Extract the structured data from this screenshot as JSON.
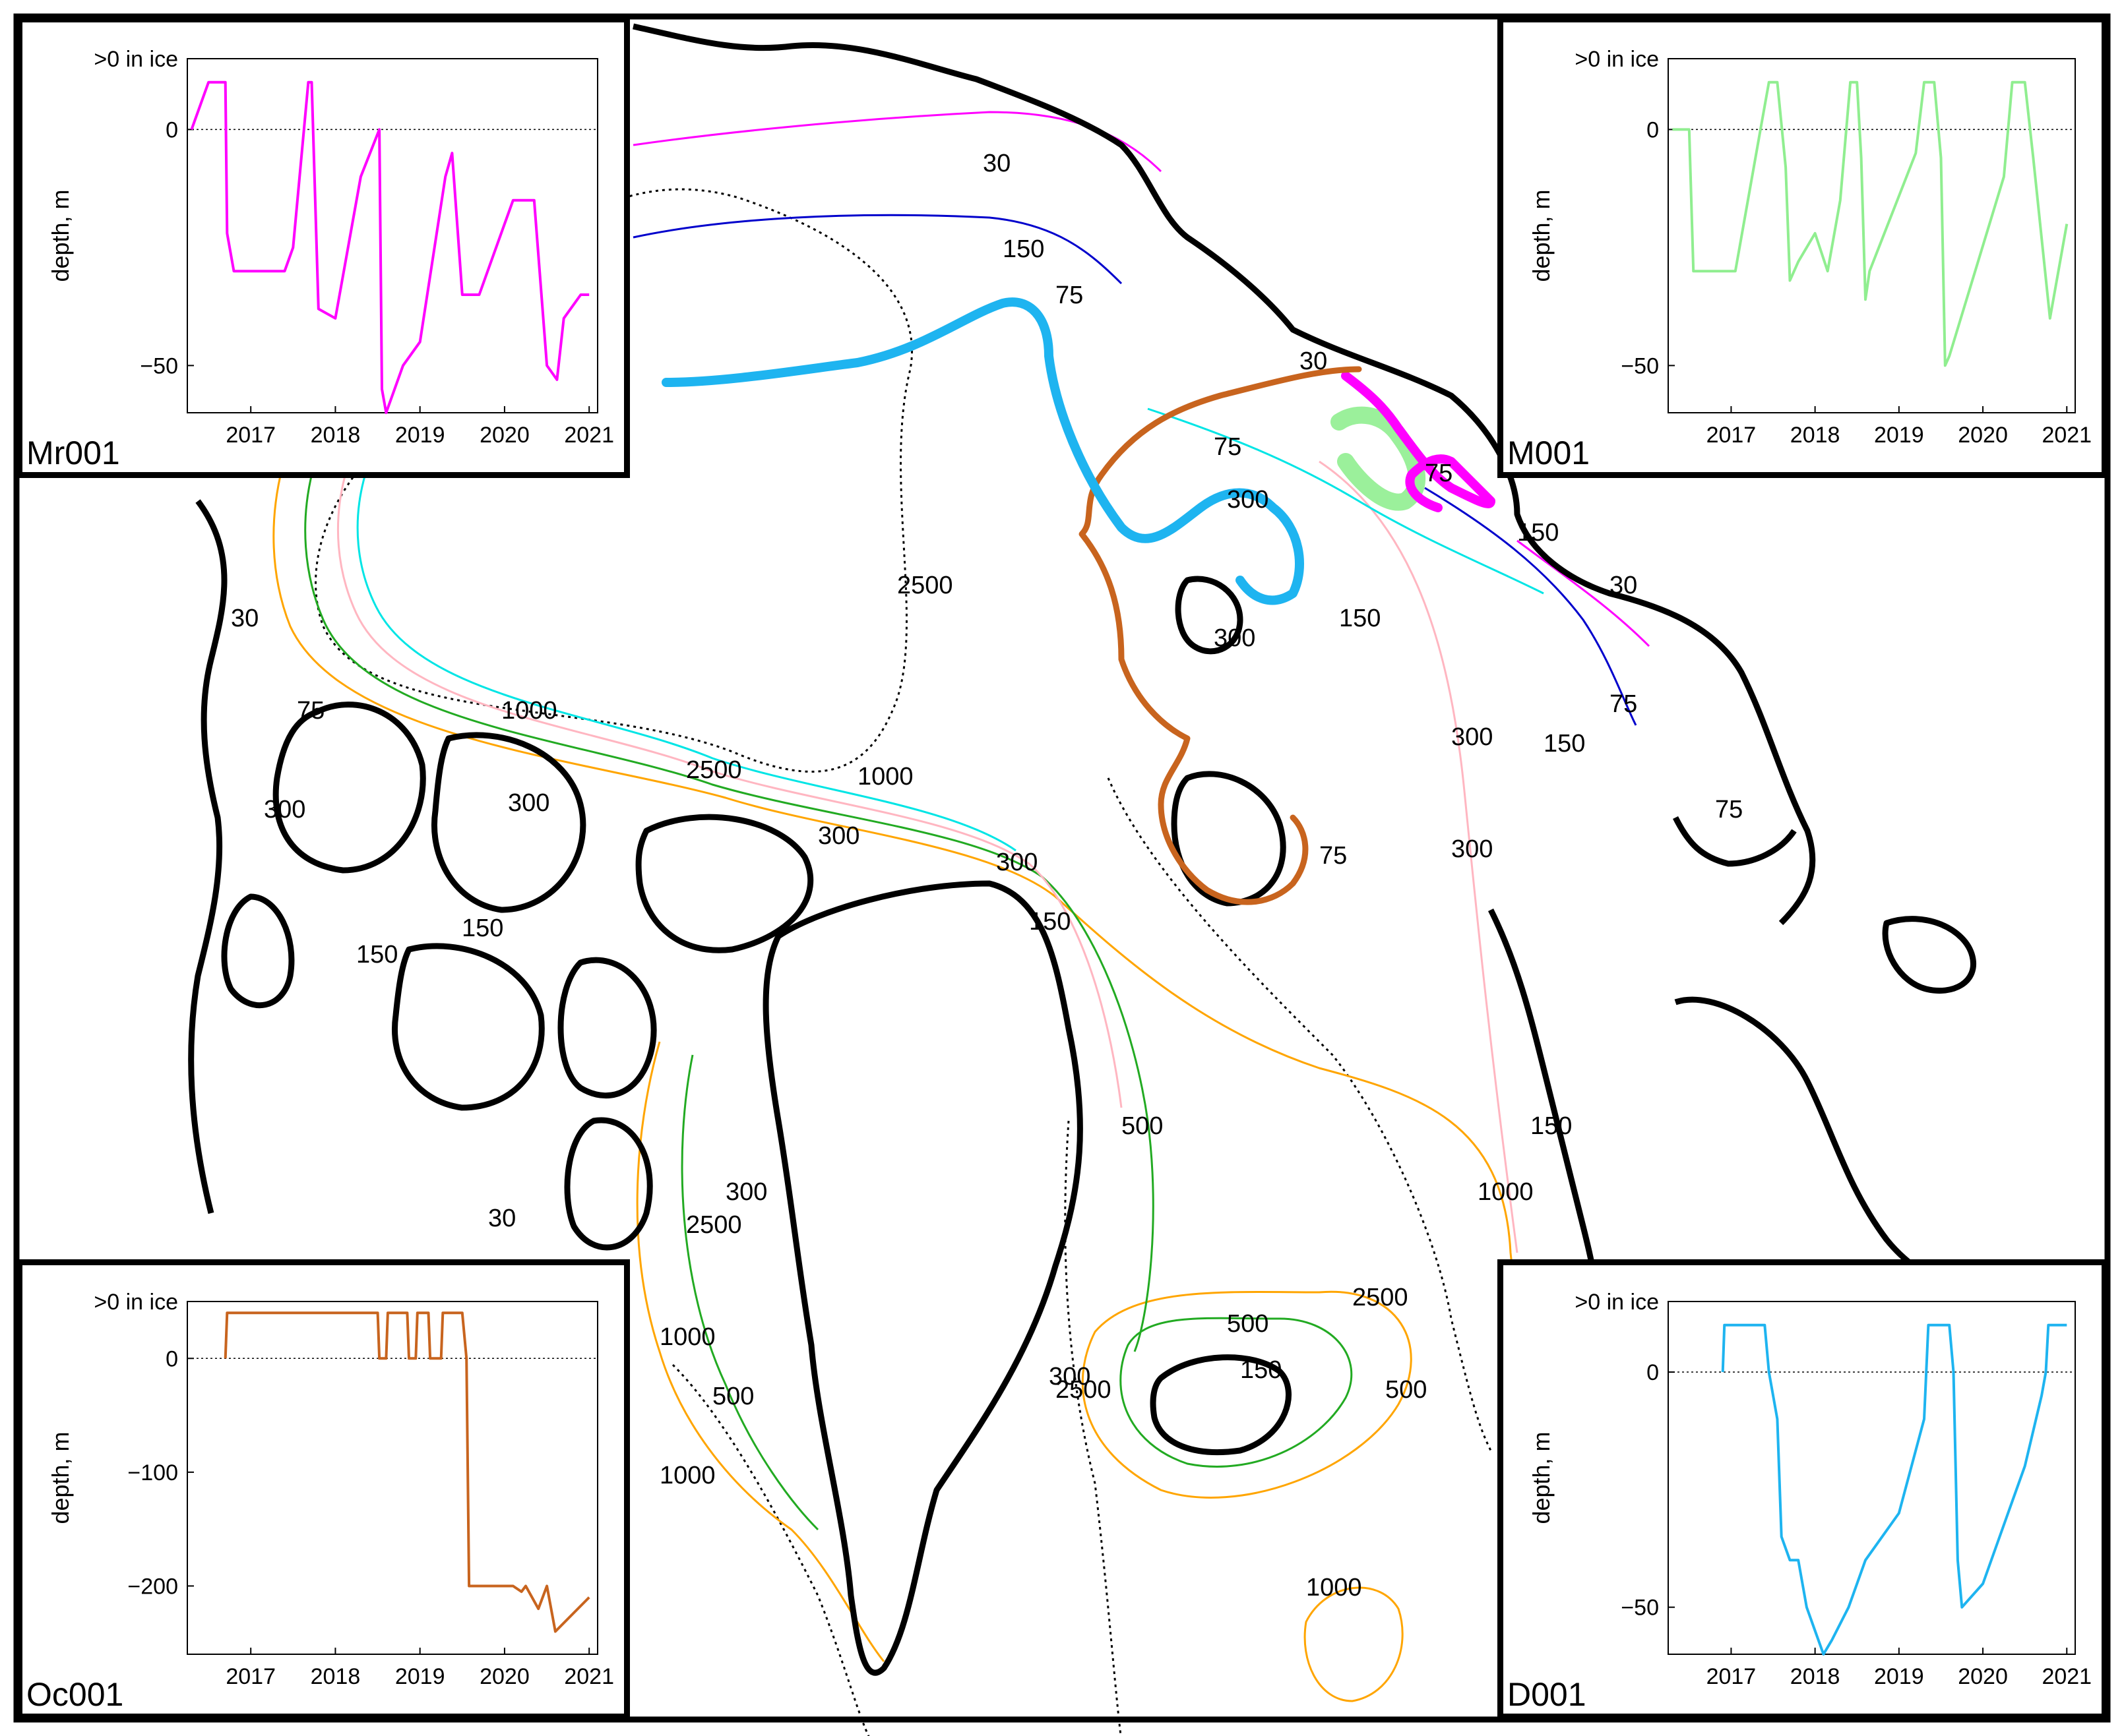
{
  "colors": {
    "coast": "#000000",
    "c30": "#ff00ff",
    "c75": "#0000cc",
    "c150": "#00e5e5",
    "c300": "#ffb6c1",
    "c500": "#22aa22",
    "c1000": "#ffa500",
    "c2500": "#000000",
    "track_mr001": "#ff00ff",
    "track_m001": "#90ee90",
    "track_oc001": "#c8641e",
    "track_d001": "#1eb4f0"
  },
  "map": {
    "contour_labels": [
      "30",
      "75",
      "150",
      "300",
      "500",
      "1000",
      "2500"
    ]
  },
  "insets": [
    {
      "id": "Mr001",
      "label": "Mr001",
      "color": "#ff00ff",
      "ylabel": "depth, m",
      "top_label": ">0 in ice",
      "yticks": [
        "0",
        "−50"
      ],
      "xticks": [
        "2017",
        "2018",
        "2019",
        "2020",
        "2021"
      ]
    },
    {
      "id": "M001",
      "label": "M001",
      "color": "#90ee90",
      "ylabel": "depth, m",
      "top_label": ">0 in ice",
      "yticks": [
        "0",
        "−50"
      ],
      "xticks": [
        "2017",
        "2018",
        "2019",
        "2020",
        "2021"
      ]
    },
    {
      "id": "Oc001",
      "label": "Oc001",
      "color": "#c8641e",
      "ylabel": "depth, m",
      "top_label": ">0 in ice",
      "yticks": [
        "0",
        "−100",
        "−200"
      ],
      "xticks": [
        "2017",
        "2018",
        "2019",
        "2020",
        "2021"
      ]
    },
    {
      "id": "D001",
      "label": "D001",
      "color": "#1eb4f0",
      "ylabel": "depth, m",
      "top_label": ">0 in ice",
      "yticks": [
        "0",
        "−50"
      ],
      "xticks": [
        "2017",
        "2018",
        "2019",
        "2020",
        "2021"
      ]
    }
  ],
  "chart_data": [
    {
      "type": "line",
      "name": "Mr001",
      "xlabel": "",
      "ylabel": "depth, m",
      "x": [
        2016.3,
        2016.5,
        2016.7,
        2016.72,
        2016.8,
        2017.4,
        2017.5,
        2017.68,
        2017.72,
        2017.8,
        2018.0,
        2018.3,
        2018.52,
        2018.55,
        2018.6,
        2018.8,
        2019.0,
        2019.3,
        2019.38,
        2019.5,
        2019.7,
        2019.9,
        2020.1,
        2020.35,
        2020.5,
        2020.62,
        2020.7,
        2020.9,
        2021.0
      ],
      "y": [
        0,
        10,
        10,
        -22,
        -30,
        -30,
        -25,
        10,
        10,
        -38,
        -40,
        -10,
        0,
        -55,
        -60,
        -50,
        -45,
        -10,
        -5,
        -35,
        -35,
        -25,
        -15,
        -15,
        -50,
        -53,
        -40,
        -35,
        -35
      ],
      "ylim": [
        -60,
        15
      ]
    },
    {
      "type": "line",
      "name": "M001",
      "x": [
        2016.3,
        2016.5,
        2016.55,
        2017.05,
        2017.35,
        2017.45,
        2017.55,
        2017.65,
        2017.7,
        2017.8,
        2018.0,
        2018.15,
        2018.3,
        2018.42,
        2018.5,
        2018.55,
        2018.6,
        2018.65,
        2019.2,
        2019.3,
        2019.42,
        2019.5,
        2019.55,
        2019.6,
        2020.25,
        2020.35,
        2020.5,
        2020.6,
        2020.8,
        2021.0
      ],
      "y": [
        0,
        0,
        -30,
        -30,
        0,
        10,
        10,
        -8,
        -32,
        -28,
        -22,
        -30,
        -15,
        10,
        10,
        -6,
        -36,
        -30,
        -5,
        10,
        10,
        -6,
        -50,
        -48,
        -10,
        10,
        10,
        -6,
        -40,
        -20
      ],
      "ylim": [
        -60,
        15
      ]
    },
    {
      "type": "line",
      "name": "Oc001",
      "x": [
        2016.7,
        2016.72,
        2016.75,
        2018.5,
        2018.52,
        2018.6,
        2018.62,
        2018.85,
        2018.87,
        2018.95,
        2018.97,
        2019.1,
        2019.12,
        2019.25,
        2019.27,
        2019.5,
        2019.55,
        2019.58,
        2020.0,
        2020.1,
        2020.2,
        2020.25,
        2020.4,
        2020.5,
        2020.6,
        2020.8,
        2021.0
      ],
      "y": [
        0,
        40,
        40,
        40,
        0,
        0,
        40,
        40,
        0,
        0,
        40,
        40,
        0,
        0,
        40,
        40,
        0,
        -200,
        -200,
        -200,
        -205,
        -200,
        -220,
        -200,
        -240,
        -225,
        -210
      ],
      "ylim": [
        -260,
        50
      ]
    },
    {
      "type": "line",
      "name": "D001",
      "x": [
        2016.9,
        2016.92,
        2017.4,
        2017.45,
        2017.55,
        2017.6,
        2017.7,
        2017.8,
        2017.9,
        2018.0,
        2018.1,
        2018.2,
        2018.4,
        2018.6,
        2019.0,
        2019.3,
        2019.35,
        2019.6,
        2019.65,
        2019.7,
        2019.75,
        2020.0,
        2020.3,
        2020.5,
        2020.7,
        2020.75,
        2020.78,
        2021.0
      ],
      "y": [
        0,
        10,
        10,
        0,
        -10,
        -35,
        -40,
        -40,
        -50,
        -55,
        -60,
        -57,
        -50,
        -40,
        -30,
        -10,
        10,
        10,
        0,
        -40,
        -50,
        -45,
        -30,
        -20,
        -5,
        0,
        10,
        10
      ],
      "ylim": [
        -60,
        15
      ]
    }
  ]
}
